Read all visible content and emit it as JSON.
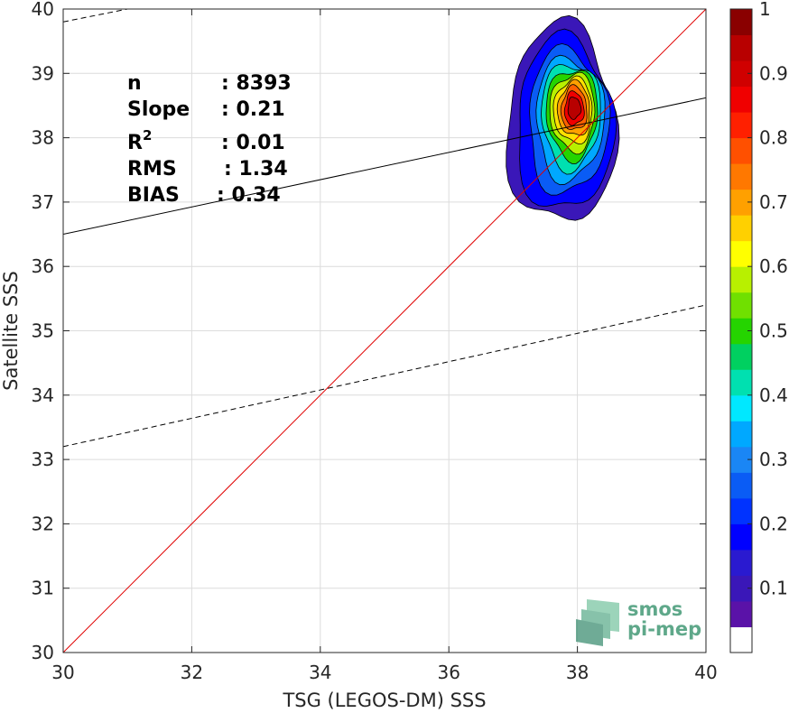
{
  "chart_data": {
    "type": "heatmap",
    "subtype": "density-contour-scatter",
    "xlabel": "TSG (LEGOS-DM) SSS",
    "ylabel": "Satellite SSS",
    "xlim": [
      30,
      40
    ],
    "ylim": [
      30,
      40
    ],
    "xticks": [
      30,
      32,
      34,
      36,
      38,
      40
    ],
    "yticks": [
      30,
      31,
      32,
      33,
      34,
      35,
      36,
      37,
      38,
      39,
      40
    ],
    "grid": true,
    "stats": [
      {
        "label": "n",
        "value": ": 8393"
      },
      {
        "label": "Slope",
        "value": ": 0.21"
      },
      {
        "label": "R",
        "sup": "2",
        "value": ": 0.01"
      },
      {
        "label": "RMS",
        "value": ": 1.34"
      },
      {
        "label": "BIAS",
        "value": ": 0.34"
      }
    ],
    "lines": {
      "identity": {
        "color": "#e00000",
        "points": [
          [
            30,
            30
          ],
          [
            40,
            40
          ]
        ]
      },
      "regression": {
        "color": "#000000",
        "points": [
          [
            30,
            36.5
          ],
          [
            40,
            38.62
          ]
        ]
      },
      "upper_bound": {
        "color": "#000000",
        "dash": true,
        "points": [
          [
            30,
            39.8
          ],
          [
            31,
            40
          ]
        ]
      },
      "lower_bound": {
        "color": "#000000",
        "dash": true,
        "points": [
          [
            30,
            33.2
          ],
          [
            40,
            35.4
          ]
        ]
      }
    },
    "density_center": [
      37.95,
      38.45
    ],
    "density_levels": [
      {
        "level": 0.05,
        "color": "#3a17b8",
        "rx": 0.85,
        "ry": 1.55,
        "cx": 37.75,
        "cy": 38.2
      },
      {
        "level": 0.15,
        "color": "#0000ff",
        "rx": 0.75,
        "ry": 1.35,
        "cx": 37.8,
        "cy": 38.2
      },
      {
        "level": 0.25,
        "color": "#0a5cf5",
        "rx": 0.62,
        "ry": 1.12,
        "cx": 37.85,
        "cy": 38.25
      },
      {
        "level": 0.35,
        "color": "#00a8ff",
        "rx": 0.53,
        "ry": 0.95,
        "cx": 37.88,
        "cy": 38.3
      },
      {
        "level": 0.45,
        "color": "#00e0b0",
        "rx": 0.46,
        "ry": 0.82,
        "cx": 37.9,
        "cy": 38.35
      },
      {
        "level": 0.55,
        "color": "#25d400",
        "rx": 0.4,
        "ry": 0.7,
        "cx": 37.92,
        "cy": 38.38
      },
      {
        "level": 0.62,
        "color": "#b8f000",
        "rx": 0.35,
        "ry": 0.6,
        "cx": 37.93,
        "cy": 38.4
      },
      {
        "level": 0.68,
        "color": "#ffe000",
        "rx": 0.3,
        "ry": 0.5,
        "cx": 37.94,
        "cy": 38.42
      },
      {
        "level": 0.75,
        "color": "#ffa000",
        "rx": 0.25,
        "ry": 0.42,
        "cx": 37.95,
        "cy": 38.44
      },
      {
        "level": 0.82,
        "color": "#ff6000",
        "rx": 0.2,
        "ry": 0.34,
        "cx": 37.95,
        "cy": 38.45
      },
      {
        "level": 0.9,
        "color": "#f00000",
        "rx": 0.15,
        "ry": 0.26,
        "cx": 37.95,
        "cy": 38.45
      },
      {
        "level": 0.96,
        "color": "#b80000",
        "rx": 0.1,
        "ry": 0.17,
        "cx": 37.95,
        "cy": 38.46
      }
    ],
    "colorbar": {
      "ticks": [
        "0.1",
        "0.2",
        "0.3",
        "0.4",
        "0.5",
        "0.6",
        "0.7",
        "0.8",
        "0.9",
        "1"
      ],
      "range": [
        0,
        1
      ],
      "colors": [
        "#ffffff",
        "#5a12a8",
        "#3a17b8",
        "#2a1ad0",
        "#0000ff",
        "#0033ff",
        "#0a5cf5",
        "#1a86f5",
        "#00a8ff",
        "#00e8ff",
        "#00e0b0",
        "#00d060",
        "#25d400",
        "#70e000",
        "#b8f000",
        "#ffff00",
        "#ffd000",
        "#ffa000",
        "#ff7800",
        "#ff5000",
        "#ff2000",
        "#f00000",
        "#d00000",
        "#b80000",
        "#8a0000"
      ]
    }
  },
  "logo": {
    "line1": "smos",
    "line2": "pi-mep"
  }
}
